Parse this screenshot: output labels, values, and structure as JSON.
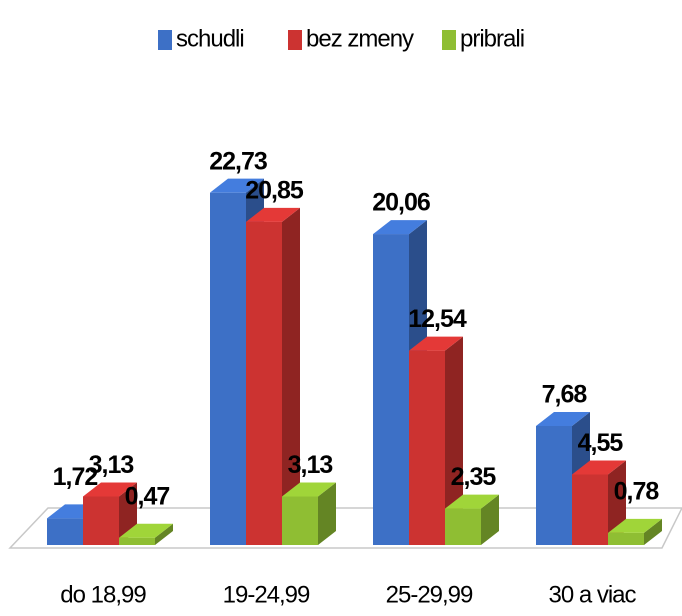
{
  "chart_data": {
    "type": "bar3d",
    "categories": [
      "do 18,99",
      "19-24,99",
      "25-29,99",
      "30 a viac"
    ],
    "series": [
      {
        "name": "schudli",
        "color": "#3d70c6",
        "values": [
          1.72,
          22.73,
          20.06,
          7.68
        ],
        "value_labels": [
          "1,72",
          "22,73",
          "20,06",
          "7,68"
        ]
      },
      {
        "name": "bez zmeny",
        "color": "#cc3331",
        "values": [
          3.13,
          20.85,
          12.54,
          4.55
        ],
        "value_labels": [
          "3,13",
          "20,85",
          "12,54",
          "4,55"
        ]
      },
      {
        "name": "pribrali",
        "color": "#8fbe33",
        "values": [
          0.47,
          3.13,
          2.35,
          0.78
        ],
        "value_labels": [
          "0,47",
          "3,13",
          "2,35",
          "0,78"
        ]
      }
    ],
    "legend": "top"
  }
}
